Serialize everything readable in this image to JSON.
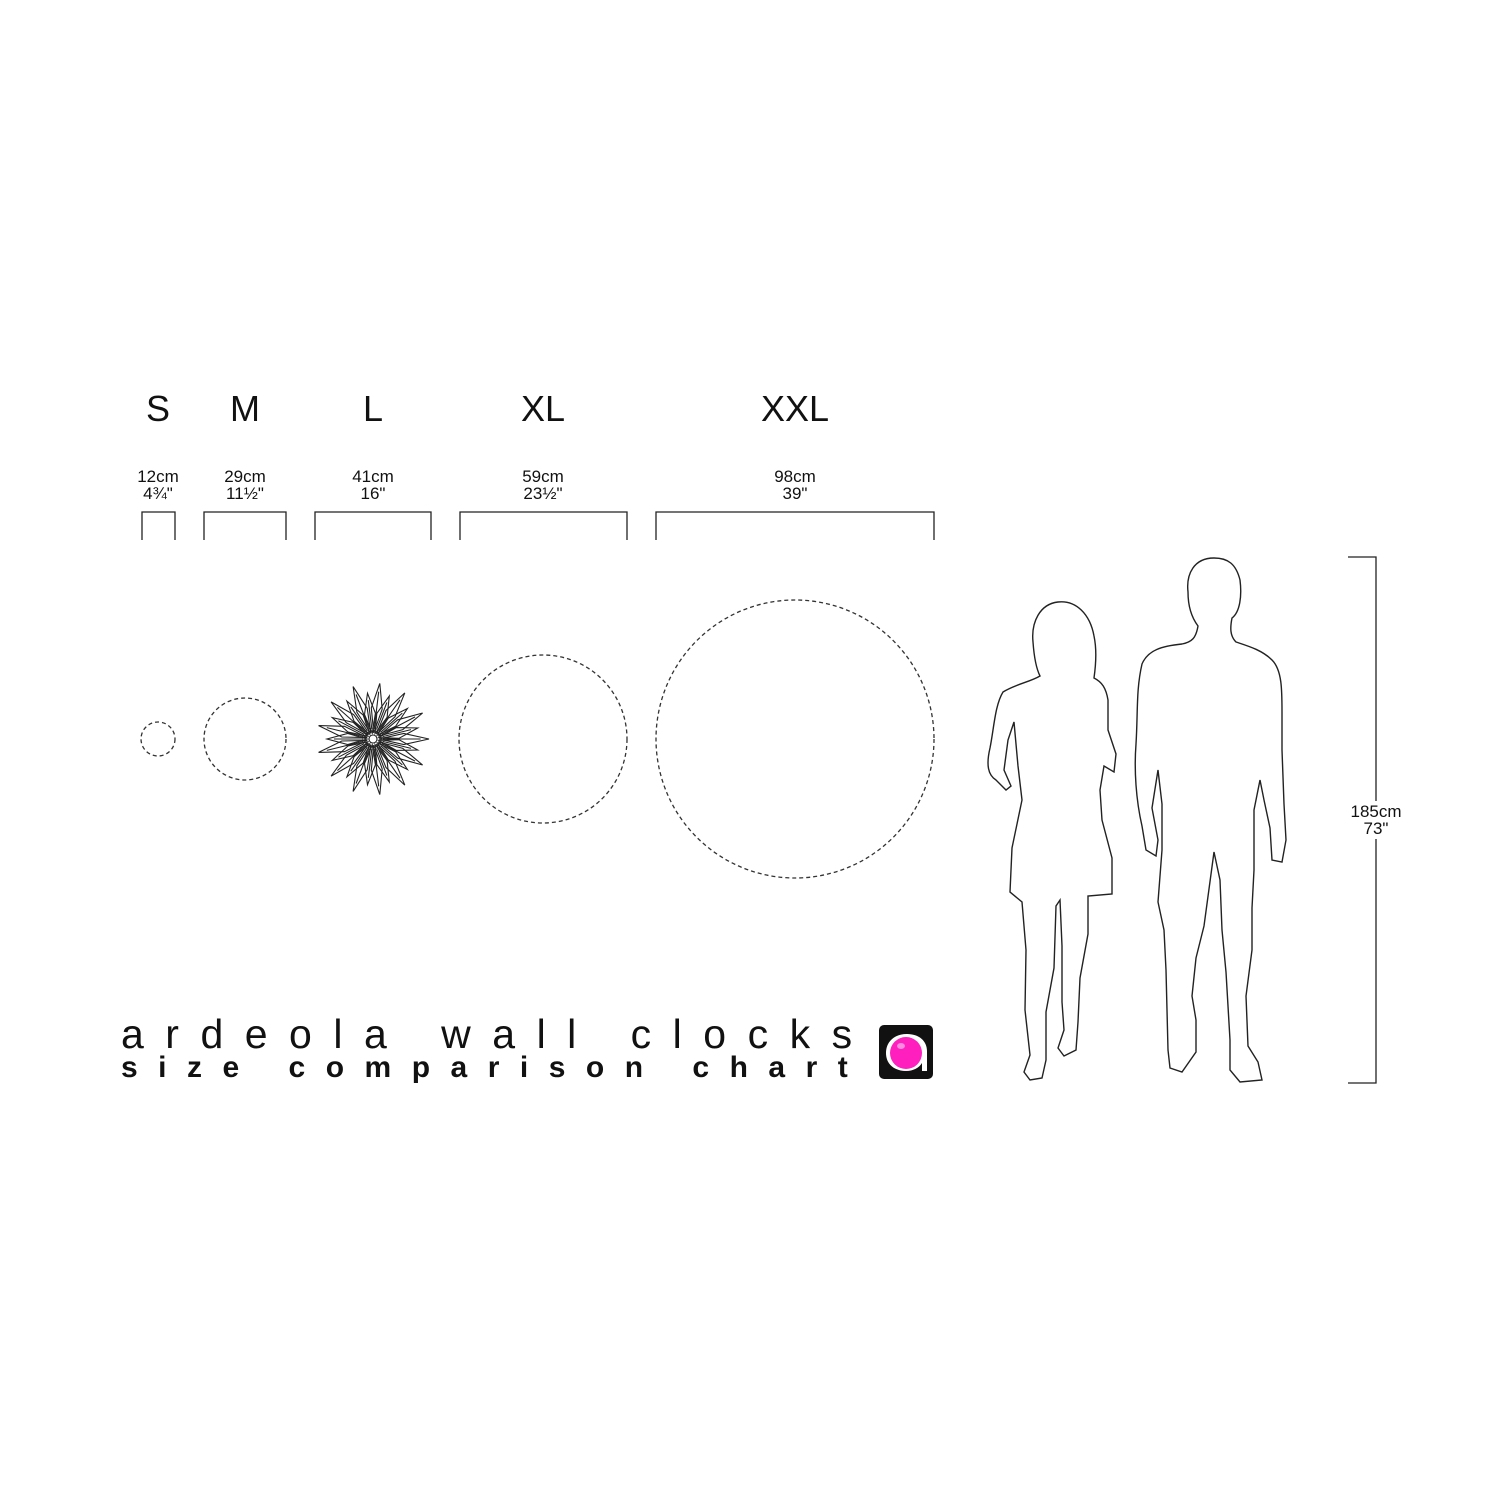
{
  "sizes": [
    {
      "label": "S",
      "cm": "12cm",
      "in": "4¾\""
    },
    {
      "label": "M",
      "cm": "29cm",
      "in": "11½\""
    },
    {
      "label": "L",
      "cm": "41cm",
      "in": "16\""
    },
    {
      "label": "XL",
      "cm": "59cm",
      "in": "23½\""
    },
    {
      "label": "XXL",
      "cm": "98cm",
      "in": "39\""
    }
  ],
  "height": {
    "cm": "185cm",
    "in": "73\""
  },
  "title": "ardeola wall clocks",
  "subtitle": "size comparison chart",
  "colors": {
    "ink": "#111111",
    "logo_bg": "#111111",
    "logo_accent": "#ff1fbf"
  },
  "icons": [
    "brand-logo-icon",
    "sunburst-clock-icon",
    "woman-silhouette-icon",
    "man-silhouette-icon"
  ]
}
